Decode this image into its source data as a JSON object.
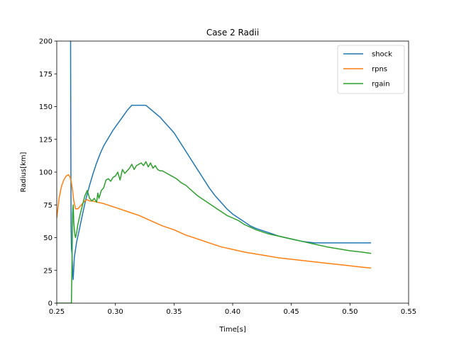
{
  "chart_data": {
    "type": "line",
    "title": "Case 2 Radii",
    "xlabel": "Time[s]",
    "ylabel": "Radius[km]",
    "xlim": [
      0.25,
      0.55
    ],
    "ylim": [
      0,
      200
    ],
    "xticks": [
      "0.25",
      "0.30",
      "0.35",
      "0.40",
      "0.45",
      "0.50",
      "0.55"
    ],
    "yticks": [
      "0",
      "25",
      "50",
      "75",
      "100",
      "125",
      "150",
      "175",
      "200"
    ],
    "grid": false,
    "legend_position": "top-right",
    "series": [
      {
        "name": "shock",
        "color": "#1f77b4",
        "x": [
          0.261,
          0.2612,
          0.2615,
          0.2618,
          0.262,
          0.2622,
          0.2625,
          0.263,
          0.2635,
          0.264,
          0.265,
          0.267,
          0.269,
          0.272,
          0.275,
          0.278,
          0.281,
          0.284,
          0.287,
          0.29,
          0.294,
          0.298,
          0.302,
          0.306,
          0.31,
          0.314,
          0.318,
          0.322,
          0.326,
          0.33,
          0.334,
          0.338,
          0.342,
          0.346,
          0.35,
          0.355,
          0.36,
          0.365,
          0.37,
          0.375,
          0.38,
          0.385,
          0.39,
          0.395,
          0.4,
          0.405,
          0.41,
          0.415,
          0.42,
          0.43,
          0.44,
          0.45,
          0.46,
          0.47,
          0.48,
          0.49,
          0.5,
          0.51,
          0.518
        ],
        "y": [
          200,
          210,
          215,
          200,
          120,
          60,
          42,
          38,
          25,
          18,
          35,
          47,
          55,
          68,
          80,
          90,
          99,
          107,
          114,
          120,
          126,
          132,
          137,
          142,
          147,
          151,
          151,
          151,
          151,
          148,
          145,
          142,
          138,
          134,
          130,
          123,
          116,
          109,
          102,
          95,
          88,
          82,
          77,
          72,
          68,
          65,
          62,
          59,
          57,
          54,
          51,
          49,
          47,
          46,
          46,
          46,
          46,
          46,
          46
        ]
      },
      {
        "name": "rpns",
        "color": "#ff7f0e",
        "x": [
          0.25,
          0.252,
          0.254,
          0.256,
          0.258,
          0.26,
          0.2615,
          0.2625,
          0.2635,
          0.2645,
          0.266,
          0.268,
          0.27,
          0.272,
          0.274,
          0.276,
          0.278,
          0.28,
          0.285,
          0.29,
          0.3,
          0.31,
          0.32,
          0.33,
          0.34,
          0.35,
          0.36,
          0.37,
          0.38,
          0.39,
          0.4,
          0.41,
          0.42,
          0.43,
          0.44,
          0.45,
          0.46,
          0.47,
          0.48,
          0.49,
          0.5,
          0.51,
          0.518
        ],
        "y": [
          65,
          80,
          89,
          94,
          97,
          98,
          96,
          92,
          86,
          78,
          72,
          72,
          74,
          76,
          78,
          79,
          78,
          78,
          77,
          76,
          73,
          70,
          67,
          63,
          59,
          56,
          52,
          49,
          46,
          43,
          41,
          39,
          37.5,
          36,
          34.5,
          33.5,
          32.5,
          31.5,
          30.5,
          29.5,
          28.5,
          27.5,
          26.8
        ]
      },
      {
        "name": "rgain",
        "color": "#2ca02c",
        "x": [
          0.25,
          0.255,
          0.26,
          0.2625,
          0.263,
          0.2635,
          0.264,
          0.2645,
          0.265,
          0.2655,
          0.266,
          0.267,
          0.268,
          0.27,
          0.272,
          0.274,
          0.276,
          0.278,
          0.28,
          0.282,
          0.284,
          0.285,
          0.286,
          0.288,
          0.29,
          0.292,
          0.294,
          0.296,
          0.298,
          0.3,
          0.302,
          0.304,
          0.306,
          0.308,
          0.31,
          0.312,
          0.314,
          0.316,
          0.318,
          0.32,
          0.322,
          0.324,
          0.326,
          0.328,
          0.33,
          0.332,
          0.334,
          0.336,
          0.338,
          0.34,
          0.344,
          0.348,
          0.352,
          0.356,
          0.36,
          0.365,
          0.37,
          0.375,
          0.38,
          0.385,
          0.39,
          0.395,
          0.4,
          0.405,
          0.41,
          0.415,
          0.42,
          0.43,
          0.44,
          0.45,
          0.46,
          0.47,
          0.48,
          0.49,
          0.5,
          0.51,
          0.518
        ],
        "y": [
          0,
          0,
          0,
          0,
          30,
          68,
          75,
          62,
          56,
          52,
          50,
          54,
          60,
          68,
          75,
          82,
          86,
          80,
          78,
          80,
          77,
          84,
          80,
          86,
          88,
          94,
          95,
          93,
          96,
          97,
          100,
          94,
          102,
          99,
          101,
          103,
          106,
          102,
          105,
          106,
          107,
          105,
          108,
          104,
          107,
          103,
          105,
          102,
          101,
          101,
          99,
          97,
          95,
          92,
          90,
          86,
          82,
          79,
          76,
          73,
          70,
          67,
          65,
          63,
          60,
          58,
          56,
          53,
          51,
          49,
          47,
          45,
          43,
          41.5,
          40,
          39,
          38
        ]
      }
    ]
  }
}
